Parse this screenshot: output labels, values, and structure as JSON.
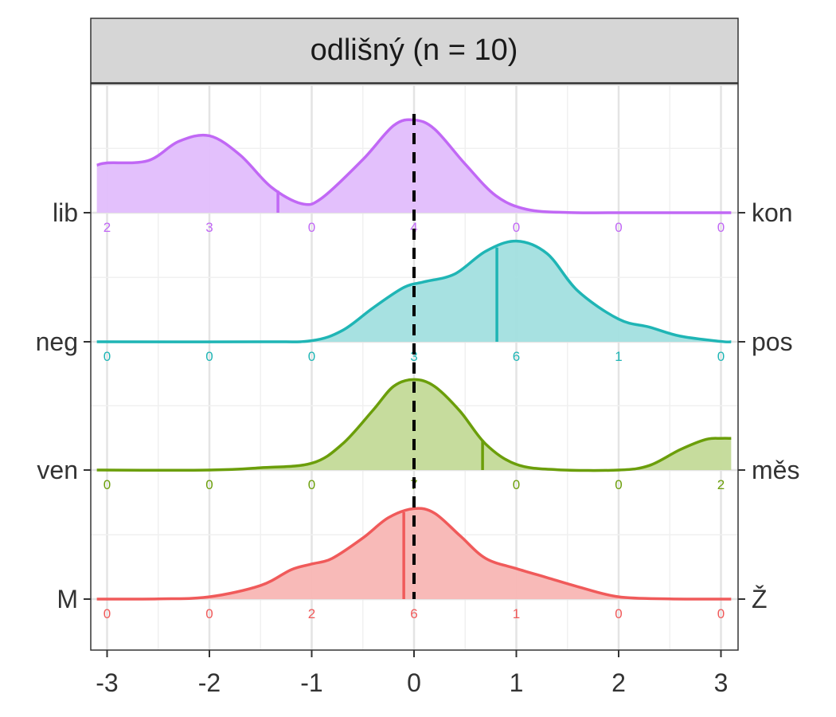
{
  "chart_data": {
    "type": "area",
    "title": "",
    "facet_label": "odlišný (n = 10)",
    "xlabel": "",
    "ylabel": "",
    "xlim": [
      -3.1,
      3.1
    ],
    "x_ticks": [
      -3,
      -2,
      -1,
      0,
      1,
      2,
      3
    ],
    "x_tick_labels": [
      "-3",
      "-2",
      "-1",
      "0",
      "1",
      "2",
      "3"
    ],
    "reference_line_x": 0,
    "grid": true,
    "count_positions": [
      -3,
      -2,
      -1,
      0,
      1,
      2,
      3
    ],
    "series": [
      {
        "left_label": "M",
        "right_label": "Ž",
        "color": "#F05A5A",
        "fill": "#F8B6B4",
        "counts": [
          0,
          0,
          2,
          6,
          1,
          0,
          0
        ],
        "mean": -0.1,
        "density": [
          [
            -3.1,
            0
          ],
          [
            -2.5,
            0.002
          ],
          [
            -2.0,
            0.02
          ],
          [
            -1.5,
            0.12
          ],
          [
            -1.2,
            0.26
          ],
          [
            -1.0,
            0.31
          ],
          [
            -0.8,
            0.36
          ],
          [
            -0.5,
            0.54
          ],
          [
            -0.25,
            0.72
          ],
          [
            0.0,
            0.8
          ],
          [
            0.2,
            0.76
          ],
          [
            0.45,
            0.56
          ],
          [
            0.7,
            0.36
          ],
          [
            1.0,
            0.27
          ],
          [
            1.3,
            0.19
          ],
          [
            1.6,
            0.11
          ],
          [
            2.0,
            0.02
          ],
          [
            2.5,
            0.002
          ],
          [
            3.1,
            0
          ]
        ]
      },
      {
        "left_label": "ven",
        "right_label": "měs",
        "color": "#6B9E0A",
        "fill": "#C3DA98",
        "counts": [
          0,
          0,
          0,
          7,
          0,
          0,
          2
        ],
        "mean": 0.67,
        "density": [
          [
            -3.1,
            0
          ],
          [
            -2.0,
            0
          ],
          [
            -1.5,
            0.02
          ],
          [
            -1.0,
            0.06
          ],
          [
            -0.7,
            0.23
          ],
          [
            -0.4,
            0.53
          ],
          [
            -0.2,
            0.74
          ],
          [
            0.0,
            0.8
          ],
          [
            0.2,
            0.74
          ],
          [
            0.45,
            0.52
          ],
          [
            0.7,
            0.23
          ],
          [
            1.0,
            0.05
          ],
          [
            1.4,
            0.003
          ],
          [
            2.0,
            0.0
          ],
          [
            2.3,
            0.04
          ],
          [
            2.6,
            0.18
          ],
          [
            2.85,
            0.27
          ],
          [
            3.0,
            0.28
          ],
          [
            3.1,
            0.28
          ]
        ]
      },
      {
        "left_label": "neg",
        "right_label": "pos",
        "color": "#1FB5B5",
        "fill": "#A2DFDF",
        "counts": [
          0,
          0,
          0,
          3,
          6,
          1,
          0
        ],
        "mean": 0.81,
        "density": [
          [
            -3.1,
            0
          ],
          [
            -1.5,
            0
          ],
          [
            -1.0,
            0.01
          ],
          [
            -0.7,
            0.1
          ],
          [
            -0.4,
            0.3
          ],
          [
            -0.1,
            0.48
          ],
          [
            0.1,
            0.53
          ],
          [
            0.4,
            0.6
          ],
          [
            0.7,
            0.8
          ],
          [
            1.0,
            0.89
          ],
          [
            1.3,
            0.78
          ],
          [
            1.6,
            0.45
          ],
          [
            2.0,
            0.2
          ],
          [
            2.3,
            0.13
          ],
          [
            2.6,
            0.05
          ],
          [
            3.0,
            0.003
          ],
          [
            3.1,
            0
          ]
        ]
      },
      {
        "left_label": "lib",
        "right_label": "kon",
        "color": "#C168F5",
        "fill": "#E1BDFC",
        "counts": [
          2,
          3,
          0,
          4,
          0,
          0,
          0
        ],
        "mean": -1.33,
        "density": [
          [
            -3.1,
            0.42
          ],
          [
            -3.0,
            0.44
          ],
          [
            -2.6,
            0.46
          ],
          [
            -2.3,
            0.63
          ],
          [
            -2.0,
            0.68
          ],
          [
            -1.7,
            0.51
          ],
          [
            -1.4,
            0.23
          ],
          [
            -1.1,
            0.08
          ],
          [
            -0.9,
            0.13
          ],
          [
            -0.5,
            0.47
          ],
          [
            -0.2,
            0.77
          ],
          [
            0.0,
            0.82
          ],
          [
            0.2,
            0.74
          ],
          [
            0.5,
            0.43
          ],
          [
            0.8,
            0.15
          ],
          [
            1.1,
            0.03
          ],
          [
            1.5,
            0.002
          ],
          [
            2.0,
            0
          ],
          [
            3.1,
            0
          ]
        ]
      }
    ]
  }
}
